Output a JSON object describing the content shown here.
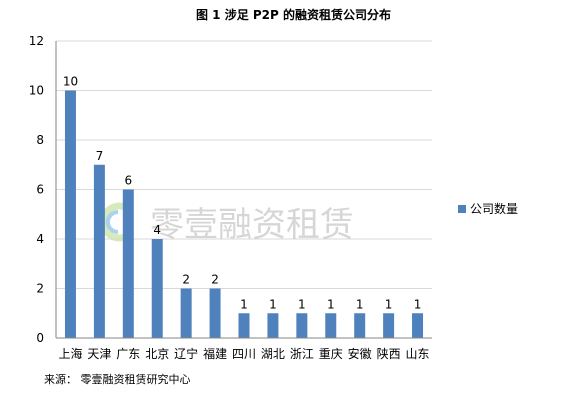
{
  "title": "图 1 涉足 P2P 的融资租赁公司分布",
  "source_note": "来源：  零壹融资租赁研究中心",
  "watermark": "零壹融资租赁",
  "colors": {
    "bar": "#4f81bd",
    "grid": "#d9d9d9",
    "axis": "#868686"
  },
  "chart_data": {
    "type": "bar",
    "categories": [
      "上海",
      "天津",
      "广东",
      "北京",
      "辽宁",
      "福建",
      "四川",
      "湖北",
      "浙江",
      "重庆",
      "安徽",
      "陕西",
      "山东"
    ],
    "series": [
      {
        "name": "公司数量",
        "values": [
          10,
          7,
          6,
          4,
          2,
          2,
          1,
          1,
          1,
          1,
          1,
          1,
          1
        ]
      }
    ],
    "ylim": [
      0,
      12
    ],
    "yticks": [
      0,
      2,
      4,
      6,
      8,
      10,
      12
    ],
    "grid": true,
    "legend_position": "right",
    "data_labels": true
  }
}
